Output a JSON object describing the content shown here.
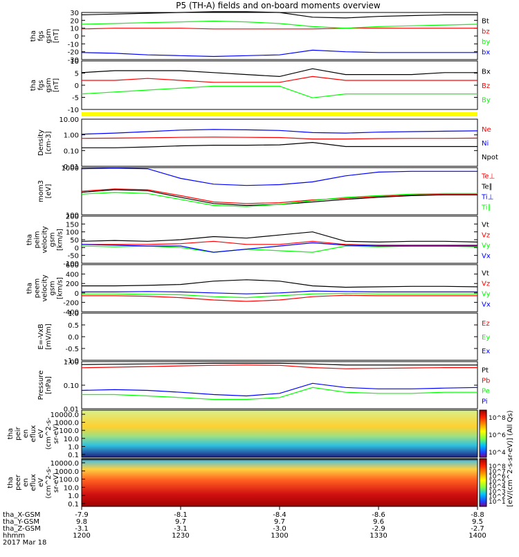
{
  "title": "P5 (TH-A) fields and on-board moments overview",
  "colors": {
    "black": "#000000",
    "red": "#ff0000",
    "green": "#00ff00",
    "blue": "#0000ff",
    "yellow": "#ffff00"
  },
  "ephemeris": {
    "row_labels": [
      "tha_X-GSM",
      "tha_Y-GSM",
      "tha_Z-GSM",
      "hhmm",
      "2017 Mar 18"
    ],
    "ticks": [
      {
        "time": "1200",
        "x": "-7.9",
        "y": "9.8",
        "z": "-3.1"
      },
      {
        "time": "1230",
        "x": "-8.1",
        "y": "9.7",
        "z": "-3.1"
      },
      {
        "time": "1300",
        "x": "-8.4",
        "y": "9.7",
        "z": "-3.0"
      },
      {
        "time": "1330",
        "x": "-8.6",
        "y": "9.6",
        "z": "-2.9"
      },
      {
        "time": "1400",
        "x": "-8.8",
        "y": "9.5",
        "z": "-2.7"
      }
    ]
  },
  "colorbars": [
    {
      "label": "[eV/(cm^2-s-sr-eV)] (All Qs)",
      "ticks": [
        "10^8",
        "10^6",
        "10^4"
      ]
    },
    {
      "label": "",
      "ticks": [
        "10^8",
        "10^7",
        "10^6",
        "10^5",
        "10^4",
        "10^3",
        "10^2",
        "10^1"
      ]
    }
  ],
  "chart_data": [
    {
      "id": "fgs-total",
      "type": "line",
      "ylabel": [
        "tha",
        "fgs",
        "gsm",
        "[nT]"
      ],
      "ylim": [
        -30,
        30
      ],
      "yticks": [
        "30",
        "20",
        "10",
        "0",
        "-10",
        "-20",
        "-30"
      ],
      "series": [
        {
          "name": "Bt",
          "color": "#000000",
          "values": [
            27,
            28,
            29,
            30,
            31,
            31,
            30,
            24,
            23,
            25,
            26,
            27,
            27
          ]
        },
        {
          "name": "bz",
          "color": "#ff0000",
          "values": [
            9,
            10,
            10,
            10,
            9,
            9,
            9,
            9,
            10,
            10,
            10,
            10,
            10
          ]
        },
        {
          "name": "by",
          "color": "#00ff00",
          "values": [
            15,
            16,
            17,
            18,
            19,
            18,
            16,
            12,
            10,
            12,
            13,
            14,
            15
          ]
        },
        {
          "name": "bx",
          "color": "#0000ff",
          "values": [
            -21,
            -22,
            -24,
            -25,
            -26,
            -25,
            -24,
            -18,
            -20,
            -21,
            -21,
            -21,
            -21
          ]
        }
      ]
    },
    {
      "id": "fgs-components",
      "type": "line",
      "ylabel": [
        "tha",
        "fgs",
        "gsm",
        "[nT]"
      ],
      "ylim": [
        -15,
        10
      ],
      "yticks": [
        "10",
        "5",
        "0",
        "-5",
        "-10"
      ],
      "series": [
        {
          "name": "Bx",
          "color": "#000000",
          "values": [
            4,
            5,
            5,
            5,
            4,
            3,
            2,
            6,
            3,
            3,
            3,
            4,
            4
          ]
        },
        {
          "name": "Bz",
          "color": "#ff0000",
          "values": [
            0,
            0,
            1,
            0,
            -1,
            -1,
            -1,
            2,
            0,
            0,
            0,
            0,
            0
          ]
        },
        {
          "name": "By",
          "color": "#00ff00",
          "values": [
            -7,
            -6,
            -5,
            -4,
            -3,
            -3,
            -3,
            -9,
            -7,
            -7,
            -7,
            -7,
            -7
          ]
        }
      ]
    },
    {
      "id": "density",
      "type": "line",
      "log": true,
      "ylabel": [
        "Density",
        "[cm-3]"
      ],
      "ylim": [
        0.01,
        10
      ],
      "yticks": [
        "10.00",
        "1.00",
        "0.10",
        "0.01"
      ],
      "series": [
        {
          "name": "Ne",
          "color": "#ff0000",
          "values": [
            0.6,
            0.62,
            0.65,
            0.7,
            0.72,
            0.7,
            0.68,
            0.55,
            0.55,
            0.58,
            0.6,
            0.6,
            0.62
          ]
        },
        {
          "name": "Ni",
          "color": "#0000ff",
          "values": [
            1.1,
            1.3,
            1.6,
            2.0,
            2.2,
            2.1,
            1.9,
            1.4,
            1.3,
            1.5,
            1.6,
            1.7,
            1.8
          ]
        },
        {
          "name": "Npot",
          "color": "#000000",
          "values": [
            0.15,
            0.15,
            0.17,
            0.2,
            0.22,
            0.22,
            0.23,
            0.33,
            0.18,
            0.18,
            0.18,
            0.18,
            0.18
          ]
        }
      ]
    },
    {
      "id": "temperature",
      "type": "line",
      "log": true,
      "ylabel": [
        "mom3",
        "[eV]"
      ],
      "ylim": [
        20,
        2000
      ],
      "yticks": [
        "1000",
        "100"
      ],
      "series": [
        {
          "name": "Te⊥",
          "color": "#ff0000",
          "values": [
            200,
            250,
            230,
            130,
            70,
            60,
            65,
            85,
            100,
            120,
            140,
            150,
            150
          ]
        },
        {
          "name": "Te∥",
          "color": "#000000",
          "values": [
            180,
            230,
            210,
            110,
            60,
            50,
            55,
            70,
            90,
            110,
            130,
            140,
            140
          ]
        },
        {
          "name": "Ti⊥",
          "color": "#0000ff",
          "values": [
            1800,
            1900,
            1800,
            700,
            400,
            350,
            380,
            500,
            900,
            1300,
            1400,
            1400,
            1400
          ]
        },
        {
          "name": "Ti∥",
          "color": "#00ff00",
          "values": [
            150,
            180,
            160,
            90,
            50,
            45,
            55,
            80,
            110,
            130,
            150,
            160,
            160
          ]
        }
      ]
    },
    {
      "id": "peim-velocity",
      "type": "line",
      "ylabel": [
        "tha",
        "peim",
        "velocity",
        "gsm",
        "[km/s]"
      ],
      "ylim": [
        -100,
        200
      ],
      "yticks": [
        "200",
        "150",
        "100",
        "50",
        "0",
        "-50",
        "-100"
      ],
      "series": [
        {
          "name": "Vt",
          "color": "#000000",
          "values": [
            40,
            45,
            40,
            50,
            70,
            60,
            80,
            100,
            40,
            35,
            40,
            40,
            35
          ]
        },
        {
          "name": "Vz",
          "color": "#ff0000",
          "values": [
            20,
            20,
            20,
            25,
            40,
            20,
            20,
            40,
            20,
            15,
            15,
            15,
            15
          ]
        },
        {
          "name": "Vy",
          "color": "#00ff00",
          "values": [
            10,
            5,
            10,
            0,
            -30,
            -10,
            -20,
            -30,
            10,
            5,
            10,
            10,
            5
          ]
        },
        {
          "name": "Vx",
          "color": "#0000ff",
          "values": [
            20,
            15,
            10,
            10,
            -30,
            -10,
            10,
            30,
            15,
            10,
            10,
            10,
            10
          ]
        }
      ]
    },
    {
      "id": "peem-velocity",
      "type": "line",
      "ylabel": [
        "tha",
        "peem",
        "velocity",
        "gsm",
        "[km/s]"
      ],
      "ylim": [
        -400,
        600
      ],
      "yticks": [
        "600",
        "400",
        "200",
        "0",
        "-200",
        "-400"
      ],
      "series": [
        {
          "name": "Vt",
          "color": "#000000",
          "values": [
            150,
            150,
            160,
            180,
            250,
            280,
            250,
            150,
            120,
            130,
            140,
            140,
            130
          ]
        },
        {
          "name": "Vz",
          "color": "#ff0000",
          "values": [
            -60,
            -60,
            -70,
            -100,
            -150,
            -180,
            -150,
            -80,
            -50,
            -60,
            -60,
            -60,
            -60
          ]
        },
        {
          "name": "Vy",
          "color": "#00ff00",
          "values": [
            -20,
            -20,
            -30,
            -40,
            -80,
            -100,
            -60,
            -20,
            -10,
            -20,
            -20,
            -20,
            -20
          ]
        },
        {
          "name": "Vx",
          "color": "#0000ff",
          "values": [
            20,
            20,
            30,
            20,
            0,
            -20,
            0,
            40,
            30,
            20,
            20,
            20,
            20
          ]
        }
      ]
    },
    {
      "id": "efield",
      "type": "line",
      "ylabel": [
        "E=-VxB",
        "[mV/m]"
      ],
      "ylim": [
        -1,
        1
      ],
      "yticks": [
        "1.0",
        "0.5",
        "0.0",
        "-0.5",
        "-1.0"
      ],
      "series": [
        {
          "name": "Ez",
          "color": "#ff0000",
          "values": []
        },
        {
          "name": "Ey",
          "color": "#00ff00",
          "values": []
        },
        {
          "name": "Ex",
          "color": "#0000ff",
          "values": []
        }
      ]
    },
    {
      "id": "pressure",
      "type": "line",
      "log": true,
      "ylabel": [
        "Pressure",
        "[nPa]"
      ],
      "ylim": [
        0.01,
        1
      ],
      "yticks": [
        "1.00",
        "0.10",
        "0.01"
      ],
      "series": [
        {
          "name": "Pt",
          "color": "#000000",
          "values": [
            0.75,
            0.78,
            0.8,
            0.82,
            0.85,
            0.85,
            0.85,
            0.8,
            0.72,
            0.72,
            0.72,
            0.72,
            0.72
          ]
        },
        {
          "name": "Pb",
          "color": "#ff0000",
          "values": [
            0.55,
            0.58,
            0.62,
            0.66,
            0.7,
            0.72,
            0.7,
            0.56,
            0.5,
            0.52,
            0.54,
            0.56,
            0.56
          ]
        },
        {
          "name": "Pe",
          "color": "#00ff00",
          "values": [
            0.04,
            0.04,
            0.035,
            0.03,
            0.025,
            0.025,
            0.03,
            0.08,
            0.05,
            0.045,
            0.045,
            0.05,
            0.05
          ]
        },
        {
          "name": "Pi",
          "color": "#0000ff",
          "values": [
            0.06,
            0.065,
            0.06,
            0.05,
            0.04,
            0.035,
            0.045,
            0.12,
            0.08,
            0.07,
            0.07,
            0.075,
            0.08
          ]
        }
      ]
    },
    {
      "id": "peir-spectrogram",
      "type": "heatmap",
      "ylabel": [
        "tha",
        "peir",
        "en",
        "eflux",
        "eV",
        "(cm^2-s-",
        "sr-eV)"
      ],
      "yticks": [
        "10000.0",
        "1000.0",
        "100.0",
        "10.0",
        "1.0",
        "0.1"
      ]
    },
    {
      "id": "peer-spectrogram",
      "type": "heatmap",
      "ylabel": [
        "tha",
        "peer",
        "en",
        "eflux",
        "eV",
        "(cm^2-s-",
        "sr-eV)"
      ],
      "yticks": [
        "10000.0",
        "1000.0",
        "100.0",
        "10.0",
        "1.0",
        "0.1"
      ]
    }
  ]
}
